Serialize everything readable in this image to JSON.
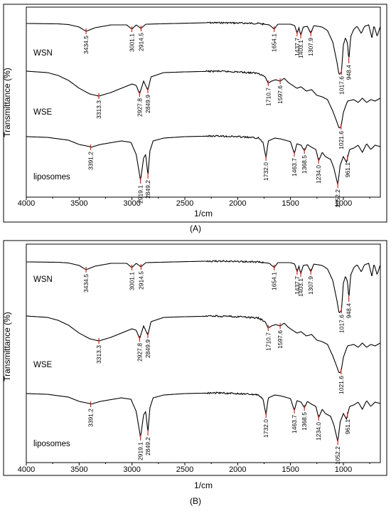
{
  "chart_data": [
    {
      "type": "line",
      "panel_label": "(A)",
      "xlabel": "1/cm",
      "ylabel": "Transmittance (%)",
      "xlim": [
        4000,
        650
      ],
      "x_ticks": [
        4000,
        3500,
        3000,
        2500,
        2000,
        1500,
        1000
      ],
      "series": [
        {
          "name": "WSN",
          "peaks": [
            "3434.5",
            "3001.1",
            "2914.5",
            "1654.1",
            "1437.7",
            "1403.1",
            "1307.9",
            "1017.6",
            "948.4"
          ],
          "peak_x": [
            3434.5,
            3001.1,
            2914.5,
            1654.1,
            1437.7,
            1403.1,
            1307.9,
            1017.6,
            948.4
          ]
        },
        {
          "name": "WSE",
          "peaks": [
            "3313.3",
            "2927.8",
            "2849.9",
            "1710.7",
            "1597.6",
            "1021.6"
          ],
          "peak_x": [
            3313.3,
            2927.8,
            2849.9,
            1710.7,
            1597.6,
            1021.6
          ]
        },
        {
          "name": "liposomes",
          "peaks": [
            "3391.2",
            "2919.1",
            "2849.2",
            "1732.0",
            "1463.7",
            "1368.5",
            "1234.0",
            "1052.2",
            "961.1"
          ],
          "peak_x": [
            3391.2,
            2919.1,
            2849.2,
            1732.0,
            1463.7,
            1368.5,
            1234.0,
            1052.2,
            961.1
          ]
        }
      ]
    },
    {
      "type": "line",
      "panel_label": "(B)",
      "xlabel": "1/cm",
      "ylabel": "Transmittance (%)",
      "xlim": [
        4000,
        650
      ],
      "x_ticks": [
        4000,
        3500,
        3000,
        2500,
        2000,
        1500,
        1000
      ],
      "series": [
        {
          "name": "WSN",
          "peaks": [
            "3434.5",
            "3001.1",
            "2914.5",
            "1654.1",
            "1437.7",
            "1403.1",
            "1307.9",
            "1017.6",
            "948.4"
          ],
          "peak_x": [
            3434.5,
            3001.1,
            2914.5,
            1654.1,
            1437.7,
            1403.1,
            1307.9,
            1017.6,
            948.4
          ]
        },
        {
          "name": "WSE",
          "peaks": [
            "3313.3",
            "2927.8",
            "2849.9",
            "1710.7",
            "1597.6",
            "1021.6"
          ],
          "peak_x": [
            3313.3,
            2927.8,
            2849.9,
            1710.7,
            1597.6,
            1021.6
          ]
        },
        {
          "name": "liposomes",
          "peaks": [
            "3391.2",
            "2919.1",
            "2849.2",
            "1732.0",
            "1463.7",
            "1368.5",
            "1234.0",
            "1052.2",
            "961.1"
          ],
          "peak_x": [
            3391.2,
            2919.1,
            2849.2,
            1732.0,
            1463.7,
            1368.5,
            1234.0,
            1052.2,
            961.1
          ]
        }
      ]
    }
  ]
}
